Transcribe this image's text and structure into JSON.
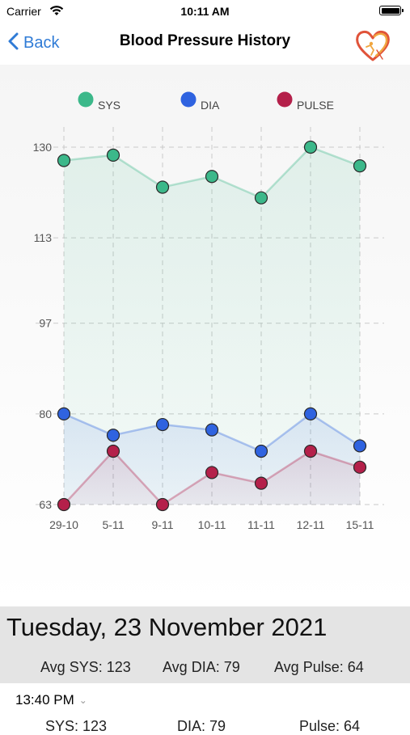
{
  "status_bar": {
    "carrier": "Carrier",
    "time": "10:11 AM"
  },
  "nav": {
    "back_label": "Back",
    "title": "Blood Pressure History",
    "logo_icon": "heart-logo-icon"
  },
  "chart_data": {
    "type": "line",
    "categories": [
      "29-10",
      "5-11",
      "9-11",
      "10-11",
      "11-11",
      "12-11",
      "15-11"
    ],
    "series": [
      {
        "name": "SYS",
        "color": "#3cb88a",
        "values": [
          127.5,
          128.5,
          122.5,
          124.5,
          120.5,
          130,
          126.5
        ]
      },
      {
        "name": "DIA",
        "color": "#2f63e0",
        "values": [
          80,
          76,
          78,
          77,
          73,
          80,
          74
        ]
      },
      {
        "name": "PULSE",
        "color": "#b4204a",
        "values": [
          63,
          73,
          63,
          69,
          67,
          73,
          70
        ]
      }
    ],
    "yticks": [
      130,
      113,
      97,
      80,
      63
    ],
    "ylim": [
      63,
      130
    ],
    "grid": true,
    "legend": "top"
  },
  "summary": {
    "date": "Tuesday, 23 November 2021",
    "avg_sys": "Avg SYS: 123",
    "avg_dia": "Avg DIA: 79",
    "avg_pulse": "Avg Pulse: 64"
  },
  "session": {
    "time": "13:40 PM",
    "sys": "SYS: 123",
    "dia": "DIA: 79",
    "pulse": "Pulse: 64"
  },
  "colors": {
    "accent": "#2f7bd6",
    "summary_bg": "#e4e4e4"
  }
}
